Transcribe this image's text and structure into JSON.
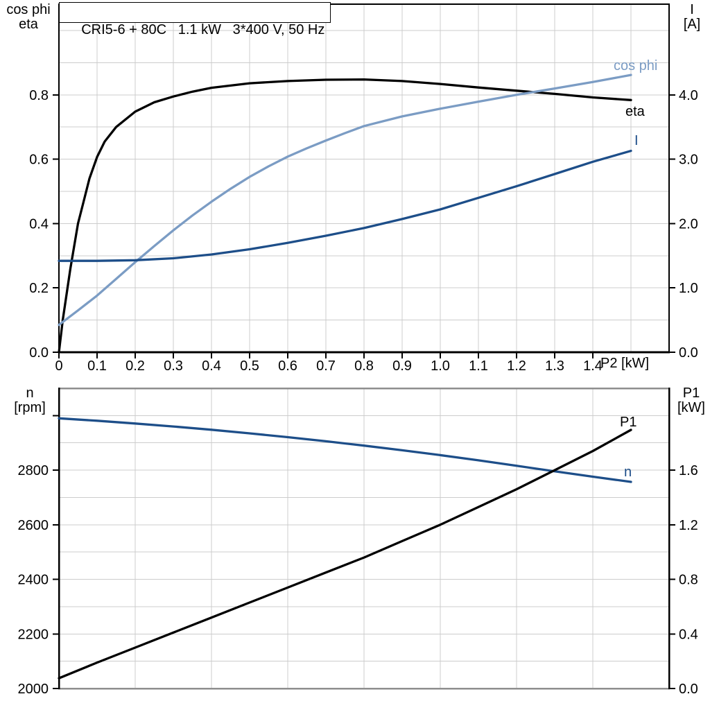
{
  "colors": {
    "black": "#000000",
    "dark_blue": "#1d4e89",
    "light_blue": "#7b9cc4",
    "grid": "#cccccc",
    "frame_gray": "#8e8e8e"
  },
  "chart_data": [
    {
      "id": "motor-efficiency-current-chart",
      "type": "line",
      "title": "CRI5-6 + 80C   1.1 kW   3*400 V, 50 Hz",
      "x_axis": {
        "label": "P2 [kW]",
        "min": 0,
        "max": 1.6,
        "tick_values": [
          0,
          0.1,
          0.2,
          0.3,
          0.4,
          0.5,
          0.6,
          0.7,
          0.8,
          0.9,
          1.0,
          1.1,
          1.2,
          1.3,
          1.4
        ],
        "tick_labels": [
          "0",
          "0.1",
          "0.2",
          "0.3",
          "0.4",
          "0.5",
          "0.6",
          "0.7",
          "0.8",
          "0.9",
          "1.0",
          "1.1",
          "1.2",
          "1.3",
          "1.4"
        ],
        "grid": [
          0.1,
          0.2,
          0.3,
          0.4,
          0.5,
          0.6,
          0.7,
          0.8,
          0.9,
          1.0,
          1.1,
          1.2,
          1.3,
          1.4,
          1.5
        ]
      },
      "y_left": {
        "label_lines": [
          "cos phi",
          "eta"
        ],
        "min": 0,
        "max": 1.082,
        "tick_values": [
          0,
          0.2,
          0.4,
          0.6,
          0.8
        ],
        "tick_labels": [
          "0.0",
          "0.2",
          "0.4",
          "0.6",
          "0.8"
        ],
        "grid": [
          0.1,
          0.2,
          0.3,
          0.4,
          0.5,
          0.6,
          0.7,
          0.8,
          0.9,
          1.0
        ]
      },
      "y_right": {
        "label_lines": [
          "I",
          "[A]"
        ],
        "min": 0,
        "max": 5.41,
        "tick_values": [
          0,
          1,
          2,
          3,
          4
        ],
        "tick_labels": [
          "0.0",
          "1.0",
          "2.0",
          "3.0",
          "4.0"
        ]
      },
      "series": [
        {
          "name": "eta",
          "axis": "left",
          "color": "black",
          "points": [
            [
              0,
              0
            ],
            [
              0.01,
              0.1
            ],
            [
              0.02,
              0.18
            ],
            [
              0.03,
              0.26
            ],
            [
              0.04,
              0.33
            ],
            [
              0.05,
              0.4
            ],
            [
              0.065,
              0.47
            ],
            [
              0.08,
              0.54
            ],
            [
              0.1,
              0.607
            ],
            [
              0.12,
              0.655
            ],
            [
              0.15,
              0.7
            ],
            [
              0.2,
              0.748
            ],
            [
              0.25,
              0.777
            ],
            [
              0.3,
              0.795
            ],
            [
              0.35,
              0.81
            ],
            [
              0.4,
              0.822
            ],
            [
              0.5,
              0.836
            ],
            [
              0.6,
              0.843
            ],
            [
              0.7,
              0.847
            ],
            [
              0.8,
              0.848
            ],
            [
              0.9,
              0.843
            ],
            [
              1.0,
              0.834
            ],
            [
              1.1,
              0.823
            ],
            [
              1.2,
              0.813
            ],
            [
              1.3,
              0.803
            ],
            [
              1.4,
              0.792
            ],
            [
              1.5,
              0.784
            ]
          ]
        },
        {
          "name": "cos phi",
          "axis": "left",
          "color": "light_blue",
          "points": [
            [
              0,
              0.085
            ],
            [
              0.05,
              0.13
            ],
            [
              0.1,
              0.176
            ],
            [
              0.15,
              0.228
            ],
            [
              0.2,
              0.28
            ],
            [
              0.25,
              0.33
            ],
            [
              0.3,
              0.379
            ],
            [
              0.35,
              0.425
            ],
            [
              0.4,
              0.468
            ],
            [
              0.45,
              0.508
            ],
            [
              0.5,
              0.545
            ],
            [
              0.55,
              0.578
            ],
            [
              0.6,
              0.608
            ],
            [
              0.65,
              0.634
            ],
            [
              0.7,
              0.658
            ],
            [
              0.75,
              0.681
            ],
            [
              0.8,
              0.703
            ],
            [
              0.9,
              0.733
            ],
            [
              1.0,
              0.757
            ],
            [
              1.1,
              0.779
            ],
            [
              1.2,
              0.8
            ],
            [
              1.3,
              0.82
            ],
            [
              1.4,
              0.84
            ],
            [
              1.5,
              0.862
            ]
          ]
        },
        {
          "name": "I",
          "axis": "right",
          "color": "dark_blue",
          "points": [
            [
              0,
              1.42
            ],
            [
              0.1,
              1.42
            ],
            [
              0.2,
              1.43
            ],
            [
              0.3,
              1.46
            ],
            [
              0.4,
              1.52
            ],
            [
              0.5,
              1.6
            ],
            [
              0.6,
              1.7
            ],
            [
              0.7,
              1.81
            ],
            [
              0.8,
              1.93
            ],
            [
              0.9,
              2.07
            ],
            [
              1.0,
              2.22
            ],
            [
              1.1,
              2.4
            ],
            [
              1.2,
              2.58
            ],
            [
              1.3,
              2.77
            ],
            [
              1.4,
              2.96
            ],
            [
              1.5,
              3.13
            ]
          ]
        }
      ]
    },
    {
      "id": "speed-input-power-chart",
      "type": "line",
      "x_axis": {
        "label": "",
        "min": 0,
        "max": 1.6,
        "tick_values": [],
        "tick_labels": [],
        "grid": [
          0.2,
          0.4,
          0.6,
          0.8,
          1.0,
          1.2,
          1.4
        ]
      },
      "y_left": {
        "label_lines": [
          "n",
          "[rpm]"
        ],
        "min": 2000,
        "max": 3100,
        "tick_values": [
          2000,
          2200,
          2400,
          2600,
          2800
        ],
        "tick_labels": [
          "2000",
          "2200",
          "2400",
          "2600",
          "2800"
        ],
        "extra_ticks": [
          3000
        ],
        "grid": [
          2100,
          2200,
          2300,
          2400,
          2500,
          2600,
          2700,
          2800,
          2900,
          3000
        ]
      },
      "y_right": {
        "label_lines": [
          "P1",
          "[kW]"
        ],
        "min": 0,
        "max": 2.2,
        "tick_values": [
          0,
          0.4,
          0.8,
          1.2,
          1.6
        ],
        "tick_labels": [
          "0.0",
          "0.4",
          "0.8",
          "1.2",
          "1.6"
        ]
      },
      "series": [
        {
          "name": "n",
          "axis": "left",
          "color": "dark_blue",
          "points": [
            [
              0,
              2990
            ],
            [
              0.1,
              2981
            ],
            [
              0.2,
              2971
            ],
            [
              0.3,
              2960
            ],
            [
              0.4,
              2948
            ],
            [
              0.5,
              2935
            ],
            [
              0.6,
              2921
            ],
            [
              0.7,
              2906
            ],
            [
              0.8,
              2890
            ],
            [
              0.9,
              2873
            ],
            [
              1.0,
              2855
            ],
            [
              1.1,
              2836
            ],
            [
              1.2,
              2816
            ],
            [
              1.3,
              2796
            ],
            [
              1.4,
              2776
            ],
            [
              1.5,
              2757
            ]
          ]
        },
        {
          "name": "P1",
          "axis": "right",
          "color": "black",
          "points": [
            [
              0,
              0.075
            ],
            [
              0.1,
              0.19
            ],
            [
              0.2,
              0.3
            ],
            [
              0.3,
              0.41
            ],
            [
              0.4,
              0.52
            ],
            [
              0.5,
              0.63
            ],
            [
              0.6,
              0.74
            ],
            [
              0.7,
              0.85
            ],
            [
              0.8,
              0.96
            ],
            [
              0.9,
              1.08
            ],
            [
              1.0,
              1.2
            ],
            [
              1.1,
              1.33
            ],
            [
              1.2,
              1.46
            ],
            [
              1.3,
              1.6
            ],
            [
              1.4,
              1.74
            ],
            [
              1.5,
              1.895
            ]
          ]
        }
      ]
    }
  ]
}
